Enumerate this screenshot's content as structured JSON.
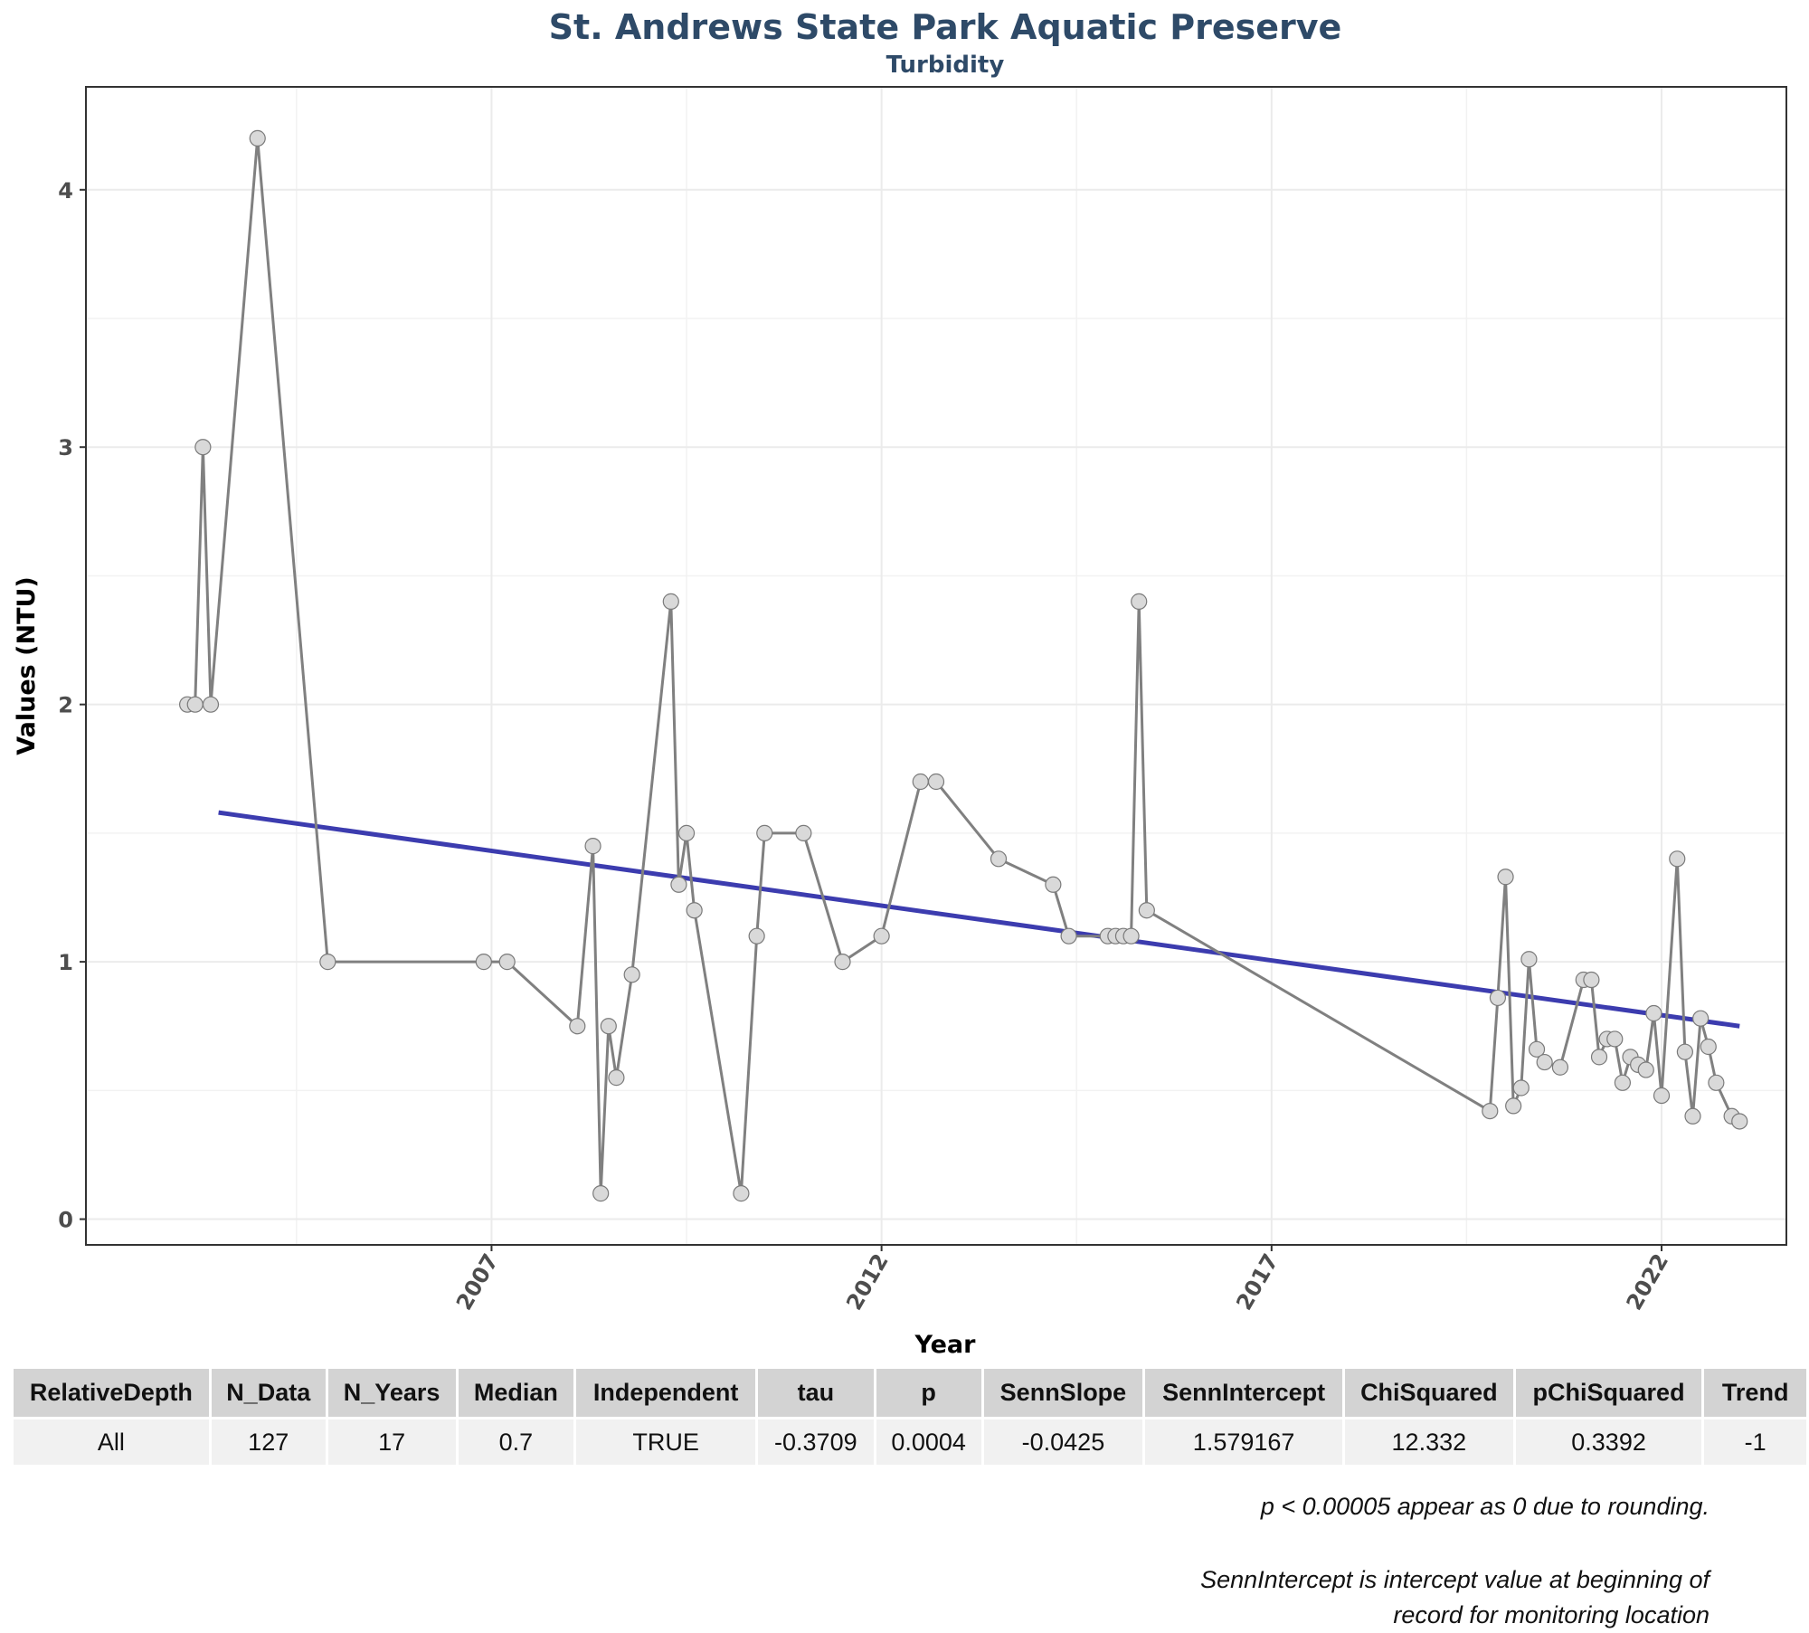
{
  "chart_data": {
    "type": "line",
    "title": "St. Andrews State Park Aquatic Preserve",
    "subtitle": "Turbidity",
    "xlabel": "Year",
    "ylabel": "Values (NTU)",
    "xlim": [
      2001.8,
      2023.6
    ],
    "ylim": [
      -0.1,
      4.4
    ],
    "x_ticks": [
      2007,
      2012,
      2017,
      2022
    ],
    "y_ticks": [
      0,
      1,
      2,
      3,
      4
    ],
    "grid": true,
    "series": [
      {
        "color": "#808080",
        "points": [
          [
            2003.1,
            2.0
          ],
          [
            2003.2,
            2.0
          ],
          [
            2003.3,
            3.0
          ],
          [
            2003.4,
            2.0
          ],
          [
            2004.0,
            4.2
          ],
          [
            2004.9,
            1.0
          ],
          [
            2006.9,
            1.0
          ],
          [
            2007.2,
            1.0
          ],
          [
            2008.1,
            0.75
          ],
          [
            2008.3,
            1.45
          ],
          [
            2008.4,
            0.1
          ],
          [
            2008.5,
            0.75
          ],
          [
            2008.6,
            0.55
          ],
          [
            2008.8,
            0.95
          ],
          [
            2009.3,
            2.4
          ],
          [
            2009.4,
            1.3
          ],
          [
            2009.5,
            1.5
          ],
          [
            2009.6,
            1.2
          ],
          [
            2010.2,
            0.1
          ],
          [
            2010.4,
            1.1
          ],
          [
            2010.5,
            1.5
          ],
          [
            2011.0,
            1.5
          ],
          [
            2011.5,
            1.0
          ],
          [
            2012.0,
            1.1
          ],
          [
            2012.5,
            1.7
          ],
          [
            2012.7,
            1.7
          ],
          [
            2013.5,
            1.4
          ],
          [
            2014.2,
            1.3
          ],
          [
            2014.4,
            1.1
          ],
          [
            2014.9,
            1.1
          ],
          [
            2015.0,
            1.1
          ],
          [
            2015.1,
            1.1
          ],
          [
            2015.2,
            1.1
          ],
          [
            2015.3,
            2.4
          ],
          [
            2015.4,
            1.2
          ],
          [
            2019.8,
            0.42
          ],
          [
            2019.9,
            0.86
          ],
          [
            2020.0,
            1.33
          ],
          [
            2020.1,
            0.44
          ],
          [
            2020.2,
            0.51
          ],
          [
            2020.3,
            1.01
          ],
          [
            2020.4,
            0.66
          ],
          [
            2020.5,
            0.61
          ],
          [
            2020.7,
            0.59
          ],
          [
            2021.0,
            0.93
          ],
          [
            2021.1,
            0.93
          ],
          [
            2021.2,
            0.63
          ],
          [
            2021.3,
            0.7
          ],
          [
            2021.4,
            0.7
          ],
          [
            2021.5,
            0.53
          ],
          [
            2021.6,
            0.63
          ],
          [
            2021.7,
            0.6
          ],
          [
            2021.8,
            0.58
          ],
          [
            2021.9,
            0.8
          ],
          [
            2022.0,
            0.48
          ],
          [
            2022.2,
            1.4
          ],
          [
            2022.3,
            0.65
          ],
          [
            2022.4,
            0.4
          ],
          [
            2022.5,
            0.78
          ],
          [
            2022.6,
            0.67
          ],
          [
            2022.7,
            0.53
          ],
          [
            2022.9,
            0.4
          ],
          [
            2023.0,
            0.38
          ]
        ]
      }
    ],
    "trend_line": {
      "color": "#3c3caf",
      "x": [
        2003.5,
        2023.0
      ],
      "y": [
        1.58,
        0.75
      ]
    }
  },
  "table": {
    "headers": [
      "RelativeDepth",
      "N_Data",
      "N_Years",
      "Median",
      "Independent",
      "tau",
      "p",
      "SennSlope",
      "SennIntercept",
      "ChiSquared",
      "pChiSquared",
      "Trend"
    ],
    "rows": [
      [
        "All",
        "127",
        "17",
        "0.7",
        "TRUE",
        "-0.3709",
        "0.0004",
        "-0.0425",
        "1.579167",
        "12.332",
        "0.3392",
        "-1"
      ]
    ]
  },
  "notes": {
    "rounding": "p < 0.00005 appear as 0 due to rounding.",
    "intercept_line1": "SennIntercept is intercept value at beginning of",
    "intercept_line2": "record for monitoring location"
  }
}
